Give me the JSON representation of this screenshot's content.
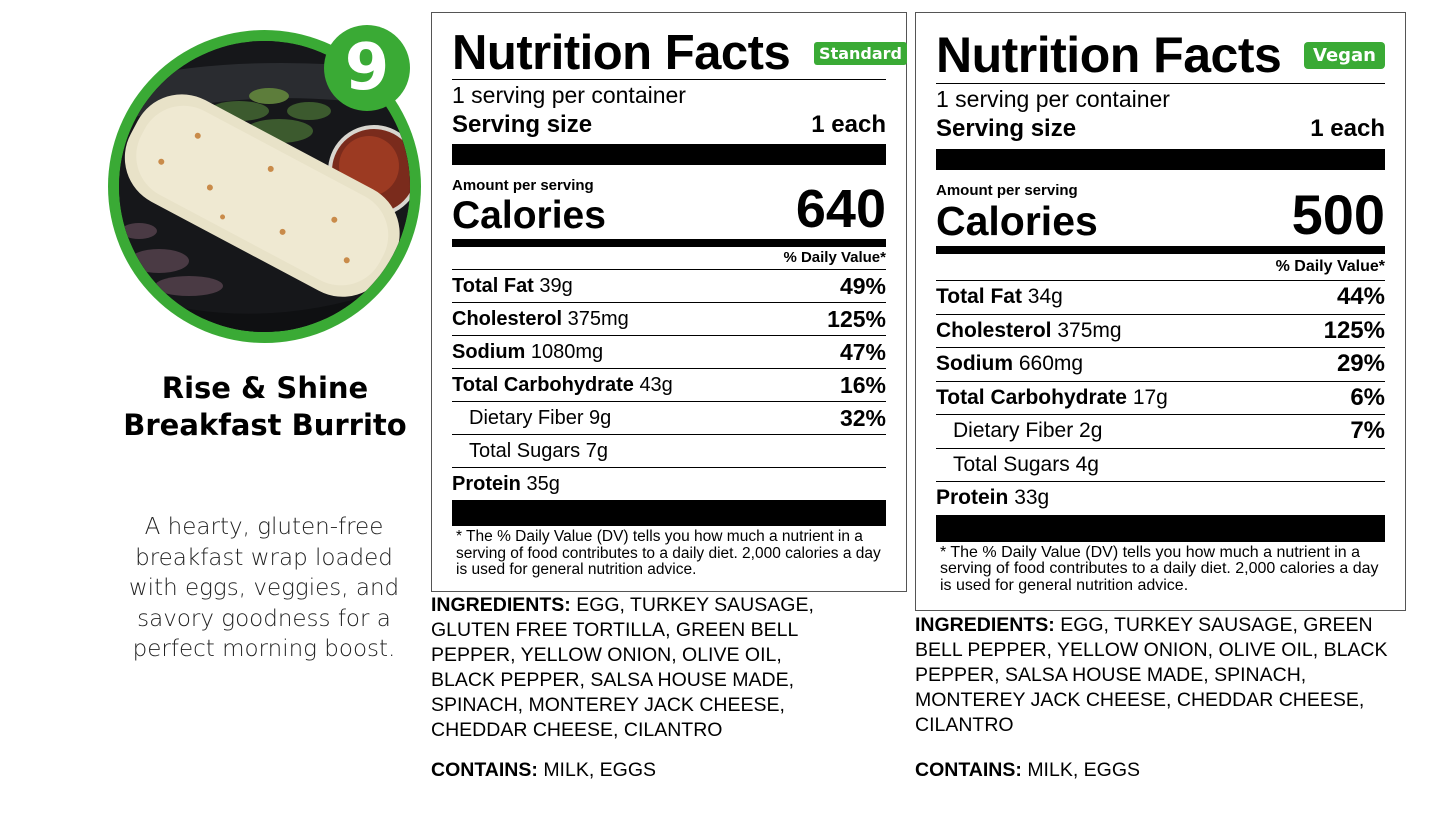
{
  "product": {
    "number": "9",
    "title_line1": "Rise & Shine",
    "title_line2": "Breakfast Burrito",
    "description": "A hearty, gluten-free breakfast wrap loaded with eggs, veggies, and savory goodness for a perfect morning boost."
  },
  "colors": {
    "brand_green": "#3aaa35"
  },
  "labels": [
    {
      "title": "Nutrition Facts",
      "tag": "Standard",
      "servings": "1 serving per container",
      "serving_size_label": "Serving size",
      "serving_size_value": "1 each",
      "amount_per_serving": "Amount per serving",
      "calories_label": "Calories",
      "calories": "640",
      "dv_header": "% Daily Value*",
      "rows": [
        {
          "name": "Total Fat",
          "amount": "39g",
          "dv": "49%"
        },
        {
          "name": "Cholesterol",
          "amount": "375mg",
          "dv": "125%"
        },
        {
          "name": "Sodium",
          "amount": "1080mg",
          "dv": "47%"
        },
        {
          "name": "Total Carbohydrate",
          "amount": "43g",
          "dv": "16%"
        },
        {
          "name": "Dietary Fiber 9g",
          "amount": "",
          "dv": "32%"
        },
        {
          "name": "Total Sugars 7g",
          "amount": "",
          "dv": ""
        },
        {
          "name": "Protein",
          "amount": "35g",
          "dv": ""
        }
      ],
      "footnote": "* The % Daily Value (DV) tells you how much a nutrient in a serving of food contributes to a daily diet. 2,000 calories a day is used for general nutrition advice.",
      "ingredients_label": "INGREDIENTS:",
      "ingredients": "EGG, TURKEY SAUSAGE, GLUTEN FREE TORTILLA, GREEN BELL PEPPER, YELLOW ONION, OLIVE OIL, BLACK PEPPER, SALSA HOUSE MADE, SPINACH, MONTEREY JACK CHEESE, CHEDDAR CHEESE, CILANTRO",
      "contains_label": "CONTAINS:",
      "contains": "MILK, EGGS"
    },
    {
      "title": "Nutrition Facts",
      "tag": "Vegan",
      "servings": "1 serving per container",
      "serving_size_label": "Serving size",
      "serving_size_value": "1 each",
      "amount_per_serving": "Amount per serving",
      "calories_label": "Calories",
      "calories": "500",
      "dv_header": "% Daily Value*",
      "rows": [
        {
          "name": "Total Fat",
          "amount": "34g",
          "dv": "44%"
        },
        {
          "name": "Cholesterol",
          "amount": "375mg",
          "dv": "125%"
        },
        {
          "name": "Sodium",
          "amount": "660mg",
          "dv": "29%"
        },
        {
          "name": "Total Carbohydrate",
          "amount": "17g",
          "dv": "6%"
        },
        {
          "name": "Dietary Fiber 2g",
          "amount": "",
          "dv": "7%"
        },
        {
          "name": "Total Sugars 4g",
          "amount": "",
          "dv": ""
        },
        {
          "name": "Protein",
          "amount": "33g",
          "dv": ""
        }
      ],
      "footnote": "* The % Daily Value (DV) tells you how much a nutrient in a serving of food contributes to a daily diet. 2,000 calories a day is used for general nutrition advice.",
      "ingredients_label": "INGREDIENTS:",
      "ingredients": "EGG, TURKEY SAUSAGE, GREEN BELL PEPPER, YELLOW ONION, OLIVE OIL, BLACK PEPPER, SALSA HOUSE MADE, SPINACH, MONTEREY JACK CHEESE, CHEDDAR CHEESE, CILANTRO",
      "contains_label": "CONTAINS:",
      "contains": "MILK, EGGS"
    }
  ]
}
